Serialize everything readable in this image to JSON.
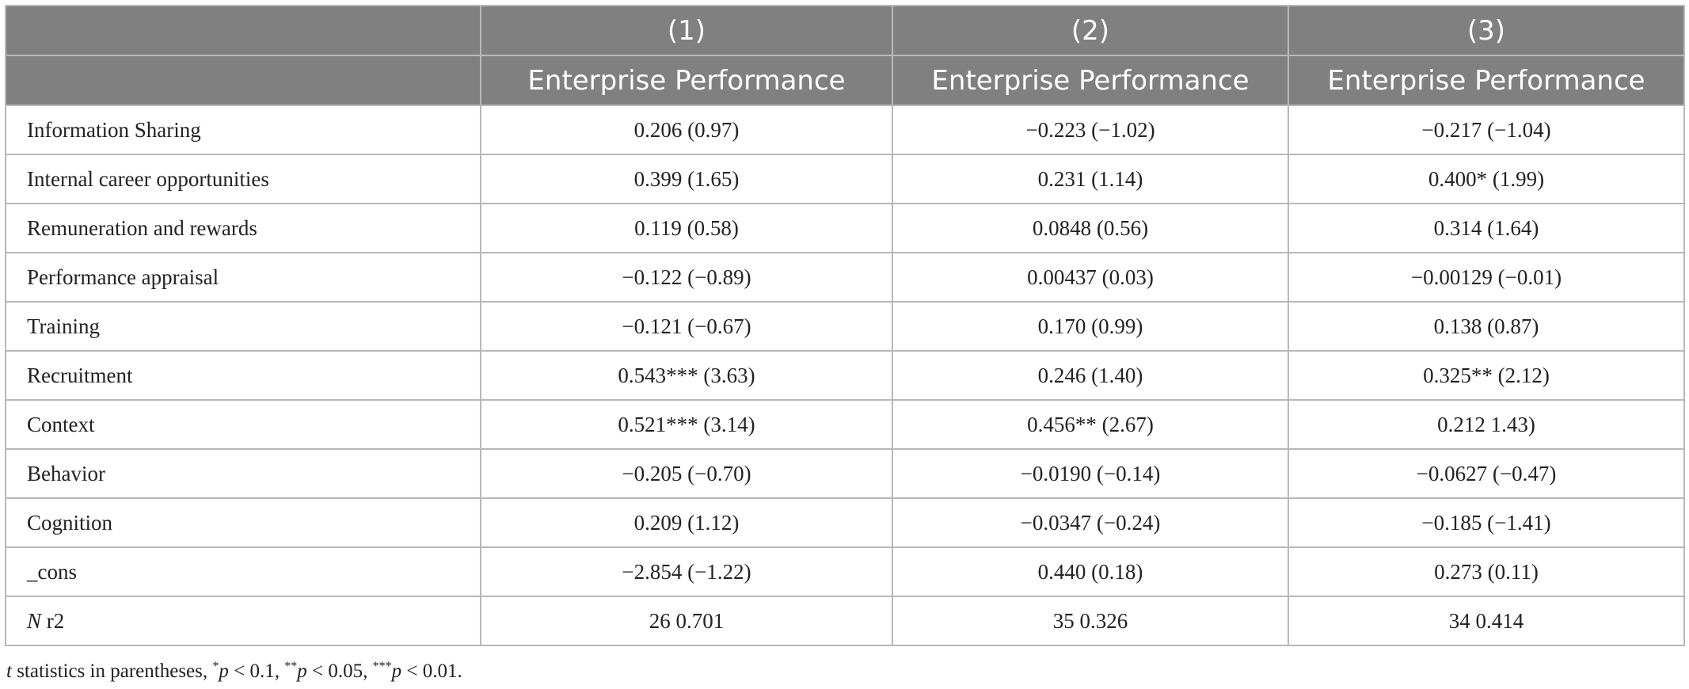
{
  "header": {
    "col_numbers": [
      "",
      "(1)",
      "(2)",
      "(3)"
    ],
    "col_titles": [
      "",
      "Enterprise Performance",
      "Enterprise Performance",
      "Enterprise Performance"
    ]
  },
  "rows": [
    {
      "label": "Information Sharing",
      "values": [
        "0.206 (0.97)",
        "−0.223 (−1.02)",
        "−0.217 (−1.04)"
      ]
    },
    {
      "label": "Internal career opportunities",
      "values": [
        "0.399 (1.65)",
        "0.231 (1.14)",
        "0.400* (1.99)"
      ]
    },
    {
      "label": "Remuneration and rewards",
      "values": [
        "0.119 (0.58)",
        "0.0848 (0.56)",
        "0.314 (1.64)"
      ]
    },
    {
      "label": "Performance appraisal",
      "values": [
        "−0.122 (−0.89)",
        "0.00437 (0.03)",
        "−0.00129 (−0.01)"
      ]
    },
    {
      "label": "Training",
      "values": [
        "−0.121 (−0.67)",
        "0.170 (0.99)",
        "0.138 (0.87)"
      ]
    },
    {
      "label": "Recruitment",
      "values": [
        "0.543*** (3.63)",
        "0.246 (1.40)",
        "0.325** (2.12)"
      ]
    },
    {
      "label": "Context",
      "values": [
        "0.521*** (3.14)",
        "0.456** (2.67)",
        "0.212 1.43)"
      ]
    },
    {
      "label": "Behavior",
      "values": [
        "−0.205 (−0.70)",
        "−0.0190 (−0.14)",
        "−0.0627 (−0.47)"
      ]
    },
    {
      "label": "Cognition",
      "values": [
        "0.209 (1.12)",
        "−0.0347 (−0.24)",
        "−0.185 (−1.41)"
      ]
    },
    {
      "label": "_cons",
      "values": [
        "−2.854 (−1.22)",
        "0.440 (0.18)",
        "0.273 (0.11)"
      ]
    },
    {
      "label_italic": "N",
      "label_rest": " r2",
      "values": [
        "26 0.701",
        "35 0.326",
        "34 0.414"
      ]
    }
  ],
  "footnote": {
    "t": "t",
    "text1": " statistics in parentheses, ",
    "star1": "*",
    "p1": "p",
    "text2": " < 0.1, ",
    "star2": "**",
    "p2": "p",
    "text3": " < 0.05, ",
    "star3": "***",
    "p3": "p",
    "text4": " < 0.01."
  },
  "colors": {
    "header_bg": "#808080",
    "header_text": "#ffffff",
    "grid": "#b8b8b8"
  }
}
